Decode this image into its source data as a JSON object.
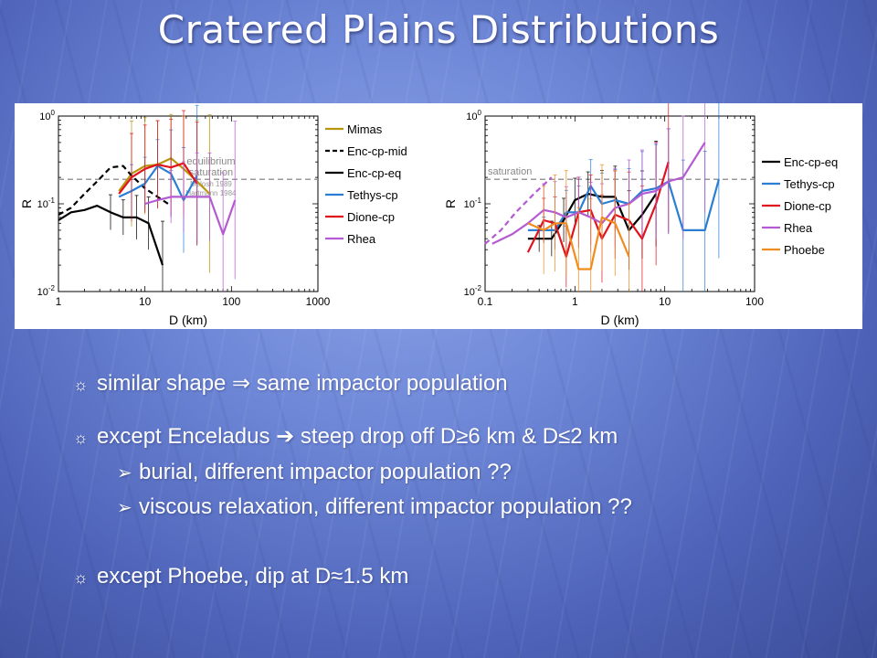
{
  "title": "Cratered Plains Distributions",
  "bullets": {
    "b1": {
      "icon": "sun-bullet-icon",
      "symbol": "☼",
      "text": "similar shape ⇒ same impactor population"
    },
    "b2": {
      "icon": "sun-bullet-icon",
      "symbol": "☼",
      "text": "except Enceladus ➔ steep drop off D≥6 km & D≤2 km"
    },
    "b2_sub1": {
      "icon": "arrow-bullet-icon",
      "symbol": "➢",
      "text": "burial, different impactor population ??"
    },
    "b2_sub2": {
      "icon": "arrow-bullet-icon",
      "symbol": "➢",
      "text": "viscous relaxation, different impactor population ??"
    },
    "b3": {
      "icon": "sun-bullet-icon",
      "symbol": "☼",
      "text": "except Phoebe, dip at D≈1.5 km"
    }
  },
  "chart_data": [
    {
      "type": "line",
      "x_scale": "log",
      "y_scale": "log",
      "xlabel": "D (km)",
      "ylabel": "R",
      "xlim": [
        1,
        1000
      ],
      "ylim": [
        0.01,
        1
      ],
      "x_ticks": [
        "1",
        "10",
        "100",
        "1000"
      ],
      "y_ticks": [
        "10^-2",
        "10^-1",
        "10^0"
      ],
      "legend_position": "right",
      "reference_line": {
        "y": 0.19,
        "label": "equilibrium saturation",
        "color": "#999999"
      },
      "reference_line_label_lines": [
        "equilibrium",
        "saturation"
      ],
      "annotations": [
        "Melosh 1989",
        "Hartmann 1984"
      ],
      "series": [
        {
          "name": "Mimas",
          "color": "#b8960c",
          "dash": false,
          "x": [
            5,
            7,
            10,
            14,
            20,
            28,
            40,
            56
          ],
          "y": [
            0.14,
            0.22,
            0.27,
            0.28,
            0.33,
            0.25,
            0.18,
            0.13
          ],
          "err": [
            0,
            0.6,
            0.55,
            0.5,
            0.5,
            0.6,
            0.7,
            0.9
          ]
        },
        {
          "name": "Enc-cp-mid",
          "color": "#000000",
          "dash": true,
          "x": [
            1,
            1.4,
            2,
            2.8,
            4,
            5.6,
            7,
            10,
            14,
            20
          ],
          "y": [
            0.075,
            0.09,
            0.13,
            0.18,
            0.26,
            0.27,
            0.21,
            0.15,
            0.12,
            0.095
          ],
          "err": []
        },
        {
          "name": "Enc-cp-eq",
          "color": "#000000",
          "dash": false,
          "x": [
            1,
            1.4,
            2,
            2.8,
            4,
            5.6,
            8,
            11,
            16
          ],
          "y": [
            0.065,
            0.08,
            0.085,
            0.095,
            0.08,
            0.07,
            0.07,
            0.06,
            0.02
          ],
          "err": [
            0,
            0,
            0,
            0,
            0.2,
            0.2,
            0.25,
            0.3,
            0.5
          ]
        },
        {
          "name": "Tethys-cp",
          "color": "#2a7fd4",
          "dash": false,
          "x": [
            5,
            7,
            10,
            14,
            20,
            28,
            40
          ],
          "y": [
            0.12,
            0.14,
            0.17,
            0.27,
            0.22,
            0.11,
            0.21
          ],
          "err": [
            0,
            0.3,
            0.3,
            0.3,
            0.5,
            0.6,
            0.8
          ]
        },
        {
          "name": "Dione-cp",
          "color": "#e0141c",
          "dash": false,
          "x": [
            5,
            7,
            10,
            14,
            20,
            28,
            40
          ],
          "y": [
            0.13,
            0.2,
            0.25,
            0.28,
            0.26,
            0.29,
            0.17
          ],
          "err": [
            0,
            0.5,
            0.5,
            0.5,
            0.55,
            0.6,
            0.7
          ]
        },
        {
          "name": "Rhea",
          "color": "#b45ad2",
          "dash": false,
          "x": [
            10,
            14,
            20,
            28,
            40,
            56,
            80,
            110
          ],
          "y": [
            0.1,
            0.11,
            0.12,
            0.12,
            0.12,
            0.12,
            0.045,
            0.11
          ],
          "err": [
            0,
            0,
            0.3,
            0.4,
            0.5,
            0.5,
            0.7,
            0.9
          ]
        }
      ]
    },
    {
      "type": "line",
      "x_scale": "log",
      "y_scale": "log",
      "xlabel": "D (km)",
      "ylabel": "R",
      "xlim": [
        0.1,
        100
      ],
      "ylim": [
        0.01,
        1
      ],
      "x_ticks": [
        "0.1",
        "1",
        "10",
        "100"
      ],
      "y_ticks": [
        "10^-2",
        "10^-1",
        "10^0"
      ],
      "legend_position": "right",
      "reference_line": {
        "y": 0.19,
        "label": "saturation",
        "color": "#999999"
      },
      "series": [
        {
          "name": "Enc-cp-eq",
          "color": "#000000",
          "dash": false,
          "x": [
            0.3,
            0.4,
            0.55,
            0.75,
            1,
            1.4,
            2,
            2.8,
            4,
            5.6,
            8
          ],
          "y": [
            0.04,
            0.04,
            0.04,
            0.065,
            0.11,
            0.13,
            0.12,
            0.12,
            0.05,
            0.075,
            0.13
          ],
          "err": [
            0,
            0.15,
            0.2,
            0.25,
            0.25,
            0.25,
            0.3,
            0.35,
            0.45,
            0.5,
            0.6
          ]
        },
        {
          "name": "Tethys-cp",
          "color": "#2a7fd4",
          "dash": false,
          "x": [
            0.3,
            0.45,
            0.6,
            0.8,
            1.1,
            1.5,
            2,
            2.8,
            4,
            5.6,
            8,
            11,
            16,
            28,
            40
          ],
          "y": [
            0.05,
            0.05,
            0.05,
            0.08,
            0.08,
            0.16,
            0.1,
            0.11,
            0.1,
            0.14,
            0.15,
            0.18,
            0.05,
            0.05,
            0.19
          ],
          "err": [
            0,
            0.15,
            0.2,
            0.25,
            0.3,
            0.3,
            0.35,
            0.35,
            0.4,
            0.45,
            0.5,
            0.6,
            0.8,
            0.9,
            0.9
          ]
        },
        {
          "name": "Dione-cp",
          "color": "#e0141c",
          "dash": false,
          "x": [
            0.3,
            0.45,
            0.6,
            0.8,
            1.1,
            1.5,
            2,
            2.8,
            4,
            5.6,
            8,
            11
          ],
          "y": [
            0.028,
            0.065,
            0.06,
            0.025,
            0.08,
            0.085,
            0.04,
            0.075,
            0.065,
            0.04,
            0.1,
            0.3
          ],
          "err": [
            0,
            0.25,
            0.3,
            0.35,
            0.4,
            0.4,
            0.5,
            0.5,
            0.55,
            0.6,
            0.7,
            0.8
          ]
        },
        {
          "name": "Rhea",
          "color": "#b45ad2",
          "dash": false,
          "x": [
            0.12,
            0.2,
            0.3,
            0.45,
            0.6,
            0.8,
            1.1,
            1.5,
            2,
            2.8,
            4,
            5.6,
            8,
            11,
            16,
            28
          ],
          "y": [
            0.035,
            0.045,
            0.06,
            0.085,
            0.08,
            0.07,
            0.08,
            0.07,
            0.06,
            0.09,
            0.1,
            0.13,
            0.14,
            0.18,
            0.2,
            0.5
          ],
          "err": [
            0,
            0,
            0,
            0.3,
            0.35,
            0.35,
            0.4,
            0.4,
            0.45,
            0.45,
            0.5,
            0.5,
            0.55,
            0.6,
            0.7,
            0.8
          ]
        },
        {
          "name": "Rhea",
          "color": "#b45ad2",
          "dash": true,
          "x": [
            0.1,
            0.15,
            0.22,
            0.35,
            0.55
          ],
          "y": [
            0.035,
            0.05,
            0.08,
            0.13,
            0.2
          ],
          "err": []
        },
        {
          "name": "Phoebe",
          "color": "#f08c1e",
          "dash": false,
          "x": [
            0.3,
            0.45,
            0.6,
            0.8,
            1.1,
            1.5,
            2,
            2.8,
            4
          ],
          "y": [
            0.06,
            0.05,
            0.06,
            0.06,
            0.018,
            0.018,
            0.07,
            0.06,
            0.025
          ],
          "err": [
            0,
            0.5,
            0.55,
            0.6,
            0.7,
            0.8,
            0.6,
            0.6,
            0.6
          ]
        }
      ]
    }
  ]
}
